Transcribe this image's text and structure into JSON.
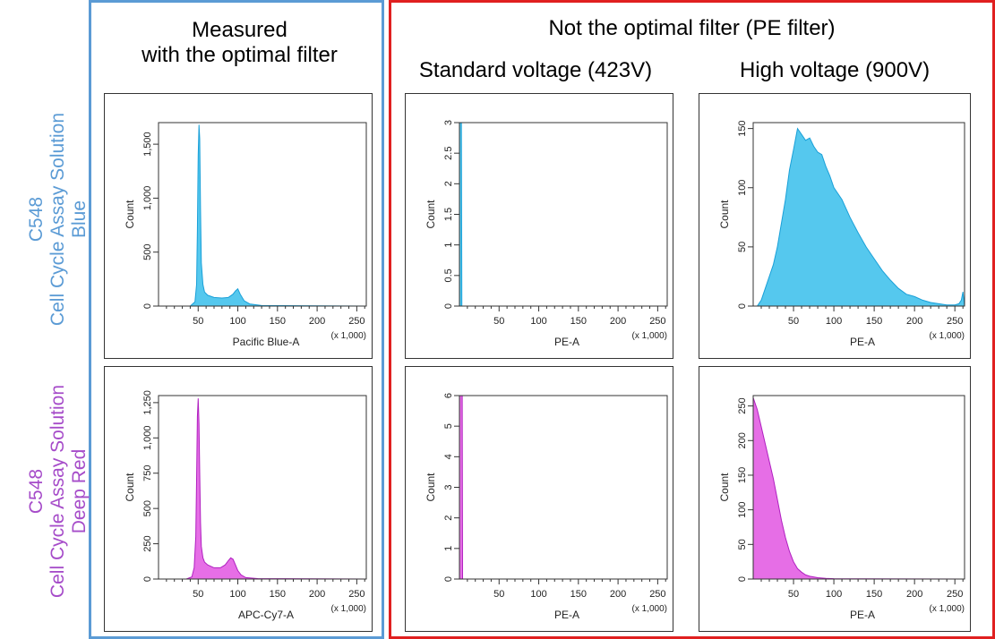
{
  "headers": {
    "left_line1": "Measured",
    "left_line2": "with the optimal filter",
    "right_main": "Not the optimal filter (PE filter)",
    "col_standard": "Standard voltage (423V)",
    "col_high": "High voltage (900V)"
  },
  "rows": [
    {
      "line1": "C548",
      "line2": "Cell Cycle Assay Solution",
      "line3": "Blue",
      "color": "#5b9bd5"
    },
    {
      "line1": "C548",
      "line2": "Cell Cycle Assay Solution",
      "line3": "Deep Red",
      "color": "#a64cc9"
    }
  ],
  "colors": {
    "blue_fill": "#55c8ee",
    "blue_line": "#1aa0d8",
    "magenta_fill": "#e66ee6",
    "magenta_line": "#b020c0"
  },
  "chart_data": [
    {
      "type": "area",
      "id": "blue-optimal",
      "xlabel": "Pacific Blue-A",
      "ylabel": "Count",
      "x_unit": "(x 1,000)",
      "xlim": [
        0,
        262
      ],
      "ylim": [
        0,
        1700
      ],
      "xticks": [
        50,
        100,
        150,
        200,
        250
      ],
      "yticks": [
        0,
        500,
        1000,
        1500
      ],
      "ytick_labels": [
        "0",
        "500",
        "1,000",
        "1,500"
      ],
      "color": "blue",
      "x": [
        0,
        40,
        46,
        48,
        49,
        50,
        51,
        52,
        53,
        54,
        56,
        58,
        62,
        70,
        80,
        88,
        94,
        97,
        100,
        103,
        108,
        115,
        130,
        262
      ],
      "y": [
        0,
        0,
        40,
        200,
        700,
        1400,
        1680,
        1550,
        900,
        400,
        200,
        130,
        100,
        80,
        75,
        80,
        110,
        140,
        160,
        110,
        50,
        20,
        5,
        0
      ]
    },
    {
      "type": "area",
      "id": "blue-standard",
      "xlabel": "PE-A",
      "ylabel": "Count",
      "x_unit": "(x 1,000)",
      "xlim": [
        0,
        262
      ],
      "ylim": [
        0,
        3
      ],
      "xticks": [
        50,
        100,
        150,
        200,
        250
      ],
      "yticks": [
        0,
        0.5,
        1,
        1.5,
        2,
        2.5,
        3
      ],
      "ytick_labels": [
        "0",
        "0.5",
        "1",
        "1.5",
        "2",
        "2.5",
        "3"
      ],
      "color": "blue",
      "x": [
        0,
        0.5,
        1,
        2,
        2.5,
        3,
        262
      ],
      "y": [
        3,
        3,
        3,
        3,
        3,
        0,
        0
      ]
    },
    {
      "type": "area",
      "id": "blue-high",
      "xlabel": "PE-A",
      "ylabel": "Count",
      "x_unit": "(x 1,000)",
      "xlim": [
        0,
        262
      ],
      "ylim": [
        0,
        155
      ],
      "xticks": [
        50,
        100,
        150,
        200,
        250
      ],
      "yticks": [
        0,
        50,
        100,
        150
      ],
      "ytick_labels": [
        "0",
        "50",
        "100",
        "150"
      ],
      "color": "blue",
      "x": [
        0,
        5,
        10,
        15,
        20,
        25,
        30,
        35,
        40,
        45,
        50,
        55,
        60,
        65,
        70,
        75,
        80,
        85,
        90,
        95,
        100,
        110,
        120,
        130,
        140,
        150,
        160,
        170,
        180,
        190,
        200,
        210,
        220,
        230,
        240,
        250,
        255,
        258,
        260,
        262
      ],
      "y": [
        0,
        0,
        5,
        15,
        25,
        35,
        50,
        70,
        90,
        115,
        132,
        150,
        145,
        140,
        142,
        135,
        130,
        128,
        118,
        110,
        100,
        90,
        75,
        62,
        50,
        40,
        30,
        22,
        15,
        10,
        8,
        5,
        3,
        2,
        1,
        1,
        2,
        5,
        12,
        0
      ]
    },
    {
      "type": "area",
      "id": "deepred-optimal",
      "xlabel": "APC-Cy7-A",
      "ylabel": "Count",
      "x_unit": "(x 1,000)",
      "xlim": [
        0,
        262
      ],
      "ylim": [
        0,
        1300
      ],
      "xticks": [
        50,
        100,
        150,
        200,
        250
      ],
      "yticks": [
        0,
        250,
        500,
        750,
        1000,
        1250
      ],
      "ytick_labels": [
        "0",
        "250",
        "500",
        "750",
        "1,000",
        "1,250"
      ],
      "color": "magenta",
      "x": [
        0,
        35,
        42,
        45,
        47,
        48,
        49,
        50,
        51,
        52,
        53,
        54,
        56,
        58,
        62,
        70,
        78,
        84,
        88,
        91,
        94,
        97,
        100,
        104,
        110,
        125,
        262
      ],
      "y": [
        0,
        0,
        15,
        80,
        300,
        700,
        1150,
        1280,
        1100,
        750,
        400,
        230,
        150,
        120,
        100,
        80,
        80,
        100,
        130,
        150,
        140,
        100,
        60,
        30,
        10,
        3,
        0
      ]
    },
    {
      "type": "area",
      "id": "deepred-standard",
      "xlabel": "PE-A",
      "ylabel": "Count",
      "x_unit": "(x 1,000)",
      "xlim": [
        0,
        262
      ],
      "ylim": [
        0,
        6
      ],
      "xticks": [
        50,
        100,
        150,
        200,
        250
      ],
      "yticks": [
        0,
        1,
        2,
        3,
        4,
        5,
        6
      ],
      "ytick_labels": [
        "0",
        "1",
        "2",
        "3",
        "4",
        "5",
        "6"
      ],
      "color": "magenta",
      "x": [
        0,
        1,
        2,
        3,
        3.5,
        4,
        262
      ],
      "y": [
        6,
        6,
        6,
        6,
        6,
        0,
        0
      ]
    },
    {
      "type": "area",
      "id": "deepred-high",
      "xlabel": "PE-A",
      "ylabel": "Count",
      "x_unit": "(x 1,000)",
      "xlim": [
        0,
        262
      ],
      "ylim": [
        0,
        265
      ],
      "xticks": [
        50,
        100,
        150,
        200,
        250
      ],
      "yticks": [
        0,
        50,
        100,
        150,
        200,
        250
      ],
      "ytick_labels": [
        "0",
        "50",
        "100",
        "150",
        "200",
        "250"
      ],
      "color": "magenta",
      "x": [
        0,
        2,
        5,
        8,
        12,
        16,
        20,
        25,
        30,
        35,
        40,
        45,
        50,
        55,
        60,
        65,
        70,
        80,
        90,
        100,
        120,
        140,
        262
      ],
      "y": [
        262,
        255,
        245,
        230,
        210,
        190,
        170,
        145,
        115,
        85,
        60,
        40,
        25,
        15,
        10,
        6,
        4,
        2,
        1,
        0.5,
        0.3,
        0.2,
        0
      ]
    }
  ]
}
